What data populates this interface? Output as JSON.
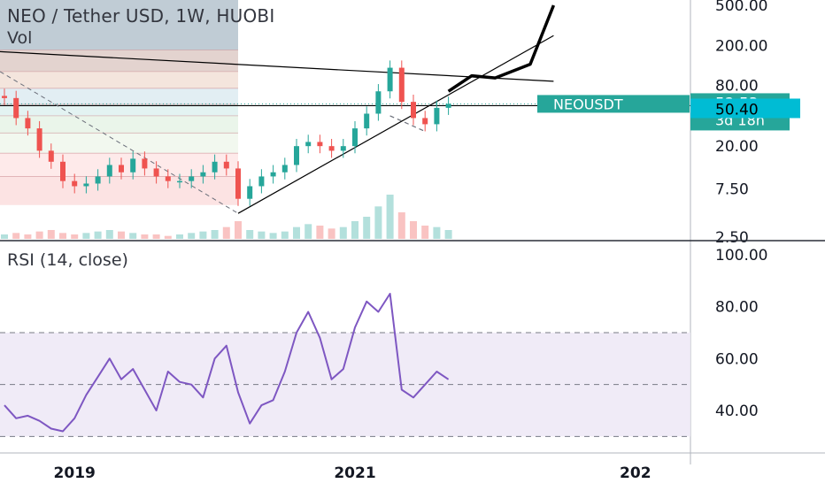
{
  "chart_data": [
    {
      "type": "candlestick",
      "title": "NEO / Tether USD, 1W, HUOBI",
      "volume_label": "Vol",
      "scale": "log",
      "y_ticks": [
        "500.00",
        "200.00",
        "80.00",
        "20.00",
        "7.50",
        "2.50"
      ],
      "ylim": [
        2.4,
        600
      ],
      "x_ticks": [
        "2019",
        "2021",
        "202"
      ],
      "last_price": {
        "symbol": "NEOUSDT",
        "value": "52.53",
        "countdown": "3d 18h",
        "color": "#26a69a"
      },
      "level_label": {
        "value": "50.40",
        "color": "#00bcd4"
      },
      "horizontal_level": 50.4,
      "colors": {
        "up": "#26a69a",
        "down": "#ef5350",
        "projection": "#000000"
      },
      "fib_zone_levels": [
        180,
        110,
        75,
        52,
        40,
        27,
        17,
        10,
        5.2
      ],
      "trendlines": [
        {
          "from": [
            "2018-06",
            175
          ],
          "to": [
            "2022-06",
            88
          ]
        },
        {
          "from": [
            "2020-03",
            4.3
          ],
          "to": [
            "2022-06",
            250
          ]
        },
        {
          "from": [
            "2021-04",
            40
          ],
          "to": [
            "2021-07",
            28
          ],
          "style": "dashed"
        }
      ],
      "price_series": {
        "x": [
          "2018-07",
          "2018-08",
          "2018-09",
          "2018-10",
          "2018-11",
          "2018-12",
          "2019-01",
          "2019-02",
          "2019-03",
          "2019-04",
          "2019-05",
          "2019-06",
          "2019-07",
          "2019-08",
          "2019-09",
          "2019-10",
          "2019-11",
          "2019-12",
          "2020-01",
          "2020-02",
          "2020-03",
          "2020-04",
          "2020-05",
          "2020-06",
          "2020-07",
          "2020-08",
          "2020-09",
          "2020-10",
          "2020-11",
          "2020-12",
          "2021-01",
          "2021-02",
          "2021-03",
          "2021-04",
          "2021-05",
          "2021-06",
          "2021-07",
          "2021-08",
          "2021-09"
        ],
        "y": [
          60,
          38,
          30,
          18,
          14,
          9,
          8,
          8.5,
          10,
          13,
          11,
          15,
          12,
          10,
          9,
          9,
          10,
          11,
          14,
          12,
          6,
          8,
          10,
          11,
          13,
          20,
          22,
          20,
          18,
          20,
          30,
          42,
          70,
          120,
          55,
          38,
          33,
          48,
          52.53
        ]
      },
      "projection": {
        "x": [
          "2021-09",
          "2021-11",
          "2022-01",
          "2022-04",
          "2022-06"
        ],
        "y": [
          70,
          100,
          95,
          130,
          500
        ]
      },
      "volume": [
        3,
        4,
        3,
        5,
        6,
        4,
        3,
        4,
        5,
        6,
        5,
        4,
        3,
        3,
        2,
        3,
        4,
        5,
        6,
        8,
        12,
        6,
        5,
        4,
        5,
        8,
        10,
        9,
        7,
        8,
        12,
        15,
        22,
        30,
        18,
        12,
        9,
        8,
        6
      ]
    },
    {
      "type": "line",
      "title": "RSI (14, close)",
      "y_ticks": [
        "100.00",
        "80.00",
        "60.00",
        "40.00"
      ],
      "ylim": [
        20,
        100
      ],
      "band": [
        30,
        70
      ],
      "midline": 50,
      "color": "#7e57c2",
      "band_color": "#ede7f6",
      "series": {
        "x": [
          "2018-07",
          "2018-08",
          "2018-09",
          "2018-10",
          "2018-11",
          "2018-12",
          "2019-01",
          "2019-02",
          "2019-03",
          "2019-04",
          "2019-05",
          "2019-06",
          "2019-07",
          "2019-08",
          "2019-09",
          "2019-10",
          "2019-11",
          "2019-12",
          "2020-01",
          "2020-02",
          "2020-03",
          "2020-04",
          "2020-05",
          "2020-06",
          "2020-07",
          "2020-08",
          "2020-09",
          "2020-10",
          "2020-11",
          "2020-12",
          "2021-01",
          "2021-02",
          "2021-03",
          "2021-04",
          "2021-05",
          "2021-06",
          "2021-07",
          "2021-08",
          "2021-09"
        ],
        "y": [
          42,
          37,
          38,
          36,
          33,
          32,
          37,
          46,
          53,
          60,
          52,
          56,
          48,
          40,
          55,
          51,
          50,
          45,
          60,
          65,
          47,
          35,
          42,
          44,
          55,
          70,
          78,
          68,
          52,
          56,
          72,
          82,
          78,
          85,
          48,
          45,
          50,
          55,
          52
        ]
      }
    }
  ]
}
